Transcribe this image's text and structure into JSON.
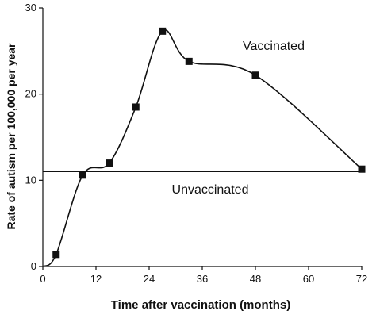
{
  "chart_data": {
    "type": "line",
    "title": "",
    "xlabel": "Time after vaccination (months)",
    "ylabel": "Rate of autism per 100,000 per year",
    "xlim": [
      0,
      72
    ],
    "ylim": [
      0,
      30
    ],
    "x_ticks": [
      0,
      12,
      24,
      36,
      48,
      60,
      72
    ],
    "y_ticks": [
      0,
      10,
      20,
      30
    ],
    "grid": false,
    "series": [
      {
        "name": "Vaccinated",
        "style": "smooth line with square markers",
        "color": "#111111",
        "points": [
          {
            "x": 0,
            "y": 0
          },
          {
            "x": 3,
            "y": 1.4
          },
          {
            "x": 9,
            "y": 10.6
          },
          {
            "x": 15,
            "y": 12.0
          },
          {
            "x": 21,
            "y": 18.5
          },
          {
            "x": 27,
            "y": 27.3
          },
          {
            "x": 33,
            "y": 23.8
          },
          {
            "x": 48,
            "y": 22.2
          },
          {
            "x": 72,
            "y": 11.3
          }
        ]
      },
      {
        "name": "Unvaccinated",
        "style": "horizontal line",
        "color": "#111111",
        "value": 11.0
      }
    ]
  }
}
